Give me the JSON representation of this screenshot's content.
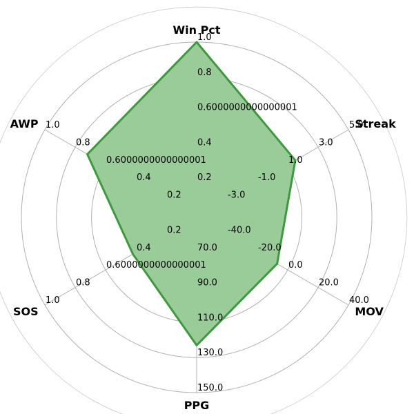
{
  "colors": {
    "fill": "#99cc99",
    "stroke": "#3c9a3c",
    "grid": "#b0b0b0"
  },
  "chart_data": {
    "type": "radar",
    "grid": true,
    "ring_levels": [
      0.2,
      0.4,
      0.6,
      0.8,
      1.0
    ],
    "axes": [
      {
        "label": "Win Pct",
        "value": 1.0,
        "ticks": [
          "0.2",
          "0.4",
          "0.6000000000000001",
          "0.8",
          "1.0"
        ]
      },
      {
        "label": "Streak",
        "value": 0.65,
        "ticks": [
          "-3.0",
          "-1.0",
          "1.0",
          "3.0",
          "5.0"
        ]
      },
      {
        "label": "MOV",
        "value": 0.53,
        "ticks": [
          "-40.0",
          "-20.0",
          "0.0",
          "20.0",
          "40.0"
        ]
      },
      {
        "label": "PPG",
        "value": 0.73,
        "ticks": [
          "70.0",
          "90.0",
          "110.0",
          "130.0",
          "150.0"
        ]
      },
      {
        "label": "SOS",
        "value": 0.42,
        "ticks": [
          "0.2",
          "0.4",
          "0.6000000000000001",
          "0.8",
          "1.0"
        ]
      },
      {
        "label": "AWP",
        "value": 0.72,
        "ticks": [
          "0.2",
          "0.4",
          "0.6000000000000001",
          "0.8",
          "1.0"
        ]
      }
    ]
  }
}
